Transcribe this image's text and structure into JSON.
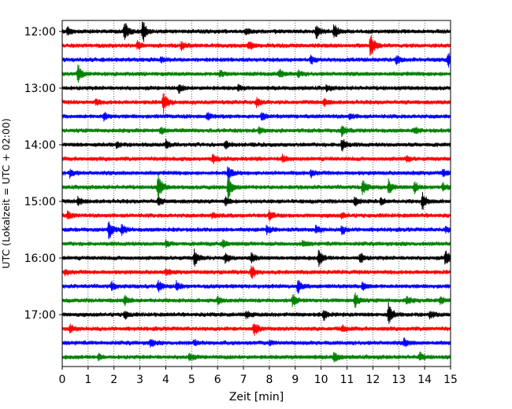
{
  "chart_data": {
    "type": "line",
    "xlabel": "Zeit  [min]",
    "ylabel": "UTC (Lokalzeit = UTC + 02:00)",
    "xlim": [
      0,
      15
    ],
    "x_ticks": [
      0,
      1,
      2,
      3,
      4,
      5,
      6,
      7,
      8,
      9,
      10,
      11,
      12,
      13,
      14,
      15
    ],
    "x_tick_labels": [
      "0",
      "1",
      "2",
      "3",
      "4",
      "5",
      "6",
      "7",
      "8",
      "9",
      "10",
      "11",
      "12",
      "13",
      "14",
      "15"
    ],
    "y_tick_labels": [
      "12:00",
      "13:00",
      "14:00",
      "15:00",
      "16:00",
      "17:00"
    ],
    "y_tick_rows": [
      0,
      4,
      8,
      12,
      16,
      20
    ],
    "grid": "vertical dotted",
    "trace_interval_min": 15,
    "colors": [
      "#000000",
      "#ff0000",
      "#0000ff",
      "#008000"
    ],
    "series": [
      {
        "start": "12:00",
        "color": "#000000",
        "events": [
          [
            2.4,
            0.8
          ],
          [
            3.1,
            0.9
          ],
          [
            9.8,
            0.5
          ],
          [
            10.5,
            0.6
          ],
          [
            0.2,
            0.3
          ],
          [
            7.1,
            0.3
          ]
        ]
      },
      {
        "start": "12:15",
        "color": "#ff0000",
        "events": [
          [
            11.9,
            1.0
          ],
          [
            4.6,
            0.3
          ],
          [
            7.2,
            0.3
          ],
          [
            2.9,
            0.25
          ]
        ]
      },
      {
        "start": "12:30",
        "color": "#0000ff",
        "events": [
          [
            14.9,
            0.6
          ],
          [
            9.6,
            0.3
          ],
          [
            12.9,
            0.3
          ],
          [
            3.8,
            0.2
          ]
        ]
      },
      {
        "start": "12:45",
        "color": "#008000",
        "events": [
          [
            0.6,
            0.7
          ],
          [
            8.4,
            0.3
          ],
          [
            9.1,
            0.25
          ],
          [
            6.1,
            0.2
          ]
        ]
      },
      {
        "start": "13:00",
        "color": "#000000",
        "events": [
          [
            4.5,
            0.3
          ],
          [
            6.8,
            0.2
          ],
          [
            10.2,
            0.2
          ]
        ]
      },
      {
        "start": "13:15",
        "color": "#ff0000",
        "events": [
          [
            3.9,
            0.8
          ],
          [
            7.5,
            0.3
          ],
          [
            10.1,
            0.25
          ],
          [
            1.3,
            0.2
          ]
        ]
      },
      {
        "start": "13:30",
        "color": "#0000ff",
        "events": [
          [
            1.6,
            0.3
          ],
          [
            5.6,
            0.25
          ],
          [
            7.7,
            0.25
          ],
          [
            11.1,
            0.2
          ]
        ]
      },
      {
        "start": "13:45",
        "color": "#008000",
        "events": [
          [
            10.8,
            0.4
          ],
          [
            3.8,
            0.25
          ],
          [
            7.6,
            0.2
          ],
          [
            13.6,
            0.2
          ]
        ]
      },
      {
        "start": "14:00",
        "color": "#000000",
        "events": [
          [
            10.8,
            0.5
          ],
          [
            4.0,
            0.3
          ],
          [
            6.3,
            0.25
          ],
          [
            2.1,
            0.2
          ]
        ]
      },
      {
        "start": "14:15",
        "color": "#ff0000",
        "events": [
          [
            5.8,
            0.3
          ],
          [
            8.5,
            0.25
          ],
          [
            13.3,
            0.2
          ]
        ]
      },
      {
        "start": "14:30",
        "color": "#0000ff",
        "events": [
          [
            6.4,
            0.6
          ],
          [
            0.3,
            0.3
          ],
          [
            9.6,
            0.25
          ],
          [
            14.7,
            0.25
          ]
        ]
      },
      {
        "start": "14:45",
        "color": "#008000",
        "events": [
          [
            3.7,
            1.0
          ],
          [
            6.4,
            1.0
          ],
          [
            11.6,
            0.6
          ],
          [
            12.6,
            0.5
          ],
          [
            13.6,
            0.4
          ],
          [
            14.7,
            0.3
          ]
        ]
      },
      {
        "start": "15:00",
        "color": "#000000",
        "events": [
          [
            13.9,
            0.6
          ],
          [
            0.6,
            0.3
          ],
          [
            3.7,
            0.3
          ],
          [
            6.3,
            0.3
          ],
          [
            11.3,
            0.3
          ],
          [
            12.3,
            0.25
          ]
        ]
      },
      {
        "start": "15:15",
        "color": "#ff0000",
        "events": [
          [
            0.2,
            0.3
          ],
          [
            8.0,
            0.3
          ],
          [
            5.8,
            0.2
          ],
          [
            10.8,
            0.2
          ]
        ]
      },
      {
        "start": "15:30",
        "color": "#0000ff",
        "events": [
          [
            1.8,
            0.7
          ],
          [
            2.3,
            0.4
          ],
          [
            7.9,
            0.3
          ],
          [
            9.8,
            0.3
          ],
          [
            10.8,
            0.3
          ],
          [
            14.8,
            0.2
          ]
        ]
      },
      {
        "start": "15:45",
        "color": "#008000",
        "events": [
          [
            6.2,
            0.3
          ],
          [
            4.0,
            0.2
          ],
          [
            9.3,
            0.2
          ]
        ]
      },
      {
        "start": "16:00",
        "color": "#000000",
        "events": [
          [
            5.1,
            0.6
          ],
          [
            9.9,
            0.6
          ],
          [
            14.8,
            0.6
          ],
          [
            6.3,
            0.4
          ],
          [
            11.5,
            0.4
          ],
          [
            7.3,
            0.3
          ]
        ]
      },
      {
        "start": "16:15",
        "color": "#ff0000",
        "events": [
          [
            7.3,
            0.5
          ],
          [
            0.1,
            0.2
          ],
          [
            4.0,
            0.2
          ]
        ]
      },
      {
        "start": "16:30",
        "color": "#0000ff",
        "events": [
          [
            9.1,
            0.5
          ],
          [
            3.7,
            0.4
          ],
          [
            4.4,
            0.35
          ],
          [
            1.9,
            0.3
          ],
          [
            11.6,
            0.3
          ]
        ]
      },
      {
        "start": "16:45",
        "color": "#008000",
        "events": [
          [
            11.3,
            0.6
          ],
          [
            8.9,
            0.4
          ],
          [
            2.4,
            0.3
          ],
          [
            13.3,
            0.3
          ],
          [
            14.6,
            0.3
          ],
          [
            6.0,
            0.25
          ]
        ]
      },
      {
        "start": "17:00",
        "color": "#000000",
        "events": [
          [
            12.6,
            0.8
          ],
          [
            2.4,
            0.3
          ],
          [
            10.1,
            0.4
          ],
          [
            14.2,
            0.3
          ],
          [
            7.1,
            0.25
          ]
        ]
      },
      {
        "start": "17:15",
        "color": "#ff0000",
        "events": [
          [
            7.4,
            0.5
          ],
          [
            0.3,
            0.3
          ],
          [
            10.8,
            0.25
          ]
        ]
      },
      {
        "start": "17:30",
        "color": "#0000ff",
        "events": [
          [
            3.4,
            0.3
          ],
          [
            13.2,
            0.3
          ],
          [
            8.0,
            0.2
          ],
          [
            5.1,
            0.2
          ]
        ]
      },
      {
        "start": "17:45",
        "color": "#008000",
        "events": [
          [
            10.5,
            0.4
          ],
          [
            4.9,
            0.3
          ],
          [
            13.8,
            0.3
          ],
          [
            1.4,
            0.2
          ]
        ]
      }
    ]
  }
}
